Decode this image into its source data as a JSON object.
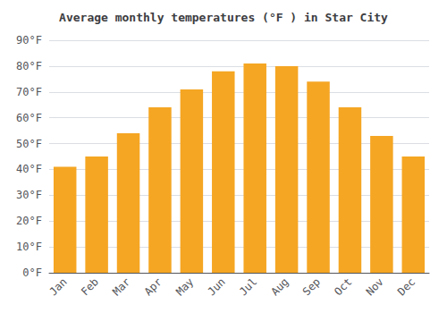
{
  "chart_data": {
    "type": "bar",
    "title": "Average monthly temperatures (°F ) in Star City",
    "categories": [
      "Jan",
      "Feb",
      "Mar",
      "Apr",
      "May",
      "Jun",
      "Jul",
      "Aug",
      "Sep",
      "Oct",
      "Nov",
      "Dec"
    ],
    "values": [
      41,
      45,
      54,
      64,
      71,
      78,
      81,
      80,
      74,
      64,
      53,
      45
    ],
    "color": "#F5A623",
    "ylim": [
      0,
      90
    ],
    "yticks": [
      {
        "value": 0,
        "label": "0°F"
      },
      {
        "value": 10,
        "label": "10°F"
      },
      {
        "value": 20,
        "label": "20°F"
      },
      {
        "value": 30,
        "label": "30°F"
      },
      {
        "value": 40,
        "label": "40°F"
      },
      {
        "value": 50,
        "label": "50°F"
      },
      {
        "value": 60,
        "label": "60°F"
      },
      {
        "value": 70,
        "label": "70°F"
      },
      {
        "value": 80,
        "label": "80°F"
      },
      {
        "value": 90,
        "label": "90°F"
      }
    ],
    "grid": true
  }
}
